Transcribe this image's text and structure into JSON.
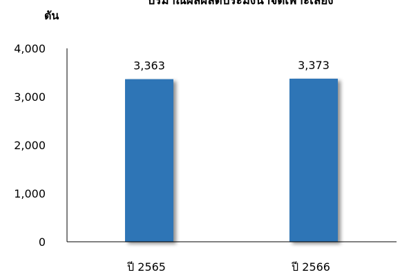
{
  "chart_data": {
    "type": "bar",
    "title": "ปริมาณผลผลิตประมงน้ำจืดเพาะเลี้ยง",
    "ylabel": "ตัน",
    "xlabel": "",
    "categories": [
      "ปี 2565",
      "ปี 2566"
    ],
    "values": [
      3363,
      3373
    ],
    "data_labels": [
      "3,363",
      "3,373"
    ],
    "ylim": [
      0,
      4000
    ],
    "yticks": [
      0,
      1000,
      2000,
      3000,
      4000
    ],
    "ytick_labels": [
      "0",
      "1,000",
      "2,000",
      "3,000",
      "4,000"
    ],
    "grid": false,
    "legend": "none",
    "bar_color": "#2E75B6"
  }
}
